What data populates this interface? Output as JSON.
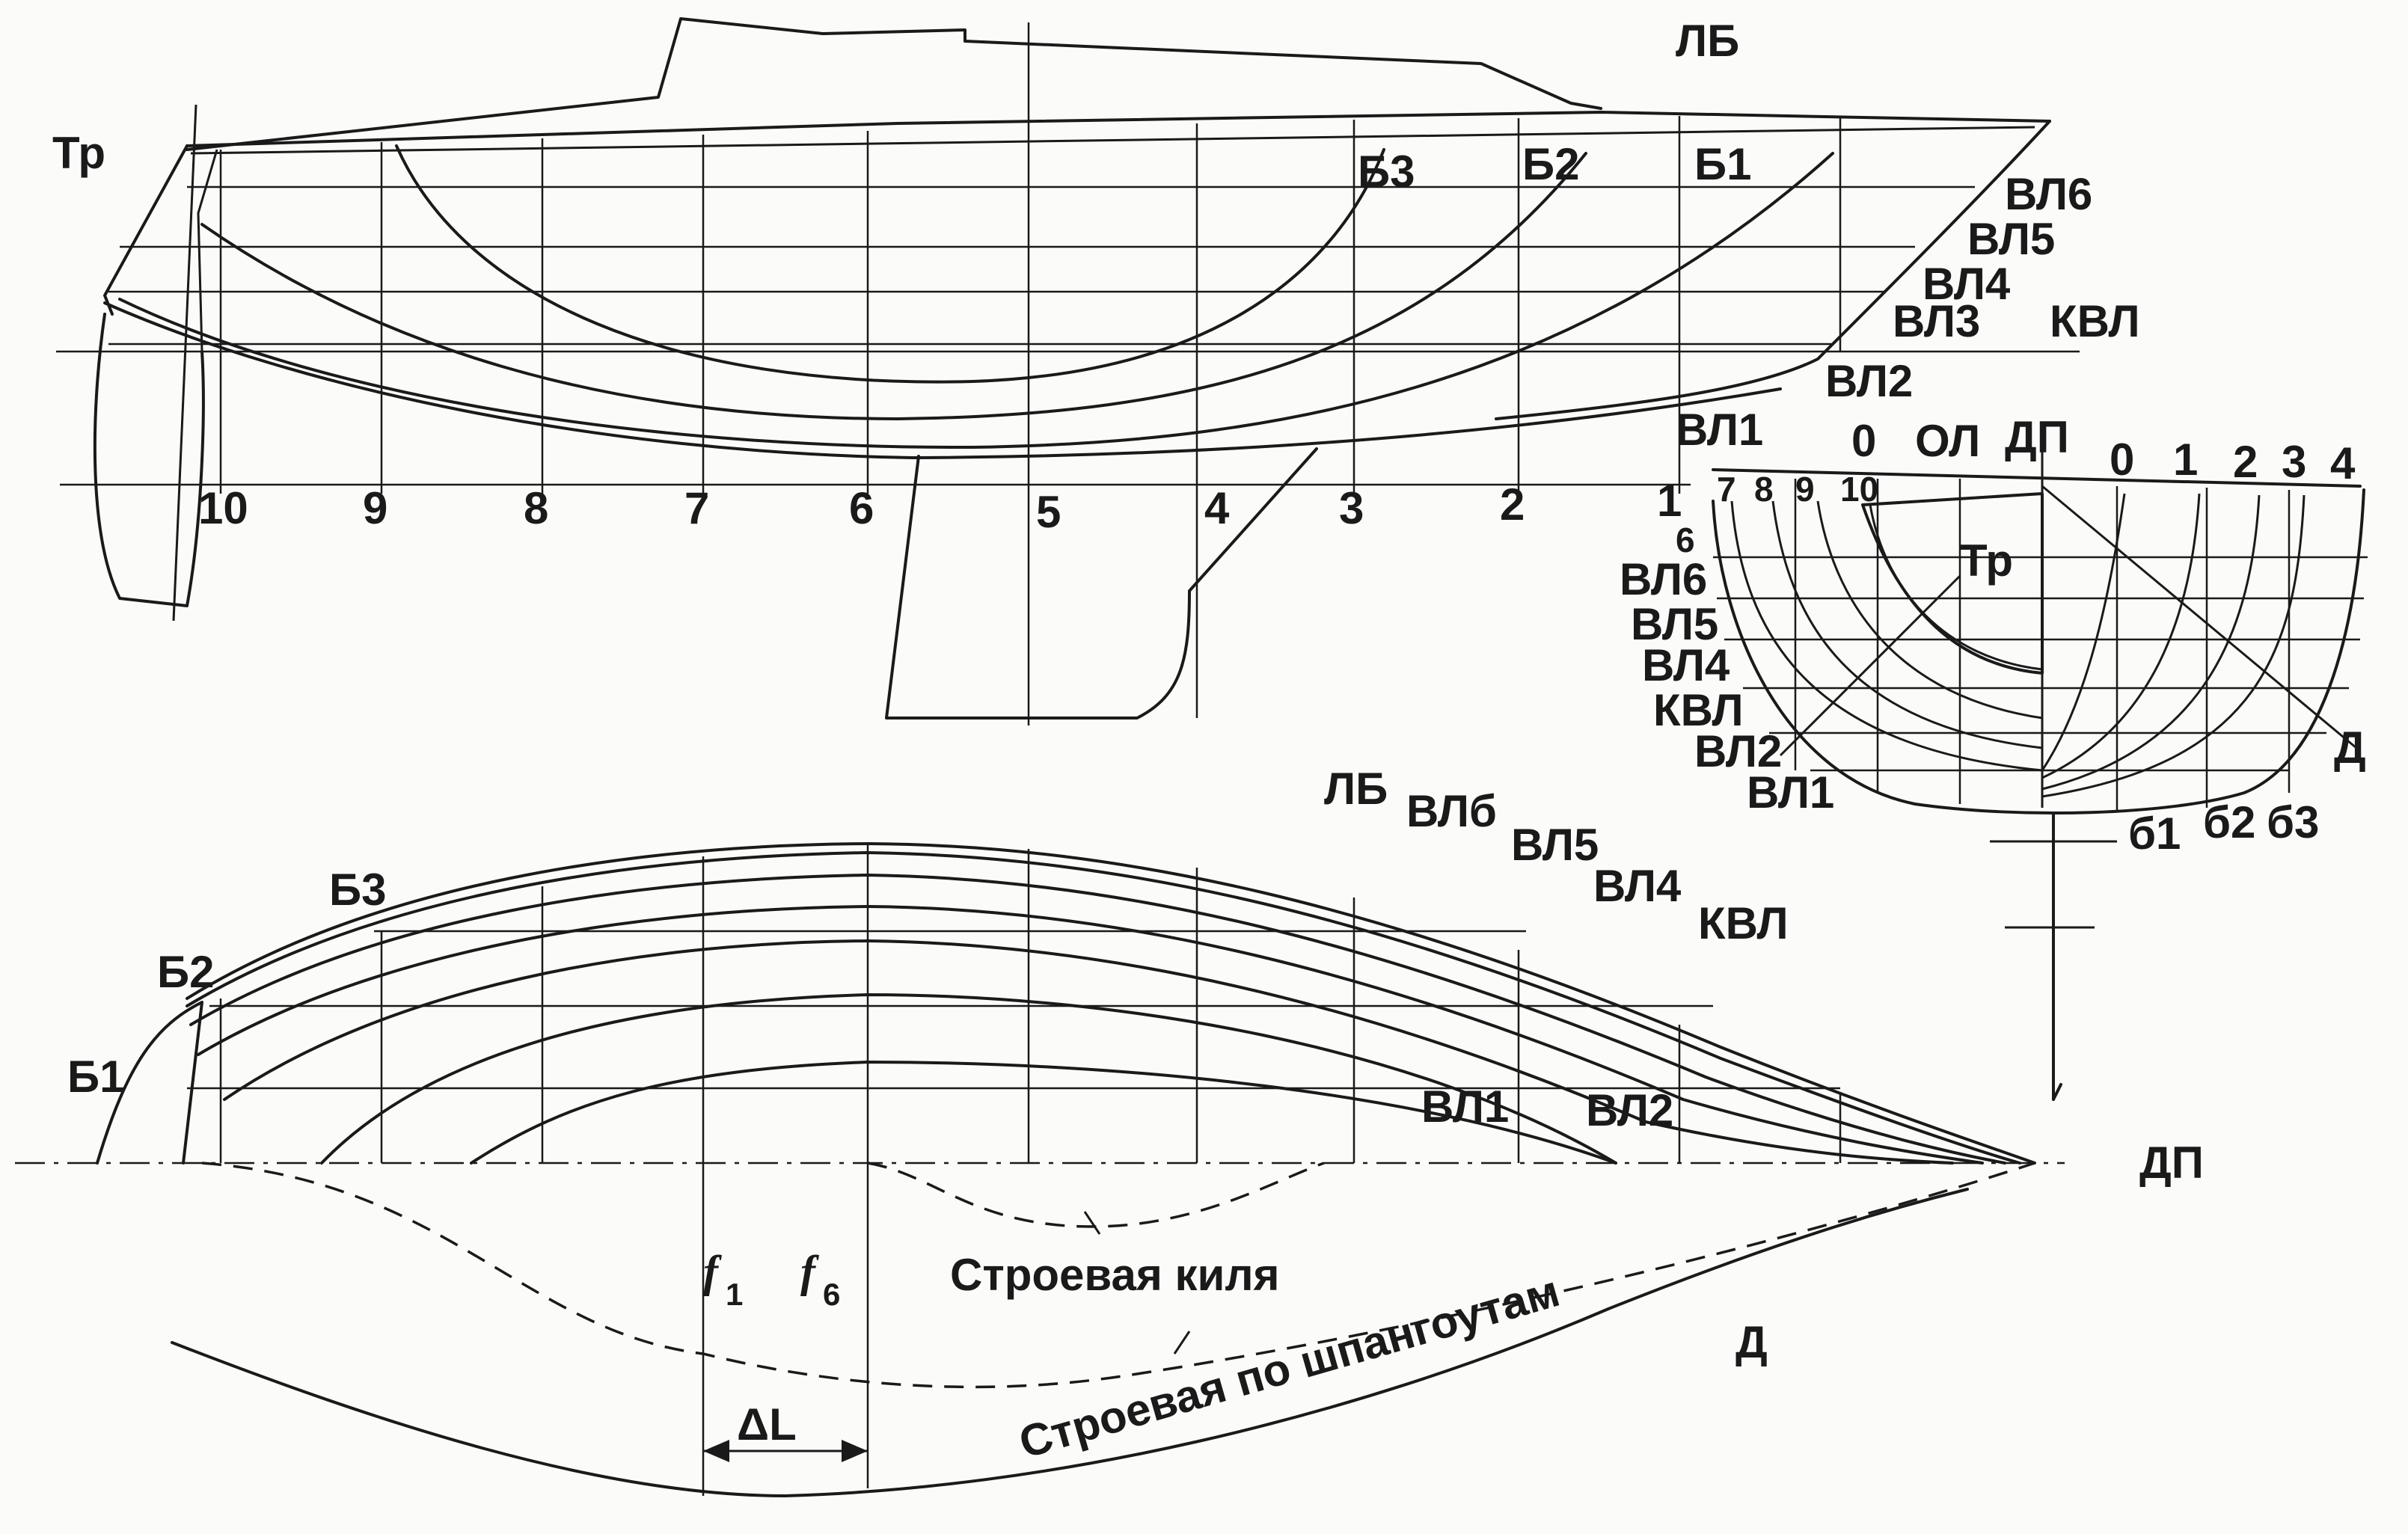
{
  "profile": {
    "transom_label": "Тр",
    "sheer_label": "ЛБ",
    "buttock_labels": [
      "Б3",
      "Б2",
      "Б1"
    ],
    "waterline_labels": [
      "ВЛ6",
      "ВЛ5",
      "ВЛ4",
      "ВЛ3",
      "ВЛ2",
      "ВЛ1"
    ],
    "dwl_label": "КВЛ",
    "station_labels": [
      "10",
      "9",
      "8",
      "7",
      "6",
      "5",
      "4",
      "3",
      "2",
      "1"
    ]
  },
  "body_plan": {
    "top_labels": [
      "0",
      "ОЛ",
      "ДП"
    ],
    "aft_station_labels": [
      "7",
      "8",
      "9",
      "10"
    ],
    "station6_label": "6",
    "fwd_station_labels": [
      "0",
      "1",
      "2",
      "3",
      "4"
    ],
    "waterline_labels": [
      "ВЛ6",
      "ВЛ5",
      "ВЛ4",
      "КВЛ",
      "ВЛ2",
      "ВЛ1"
    ],
    "transom_label": "Тр",
    "diagonal_label": "Д",
    "buttock_labels": [
      "б1",
      "б2",
      "б3"
    ]
  },
  "half_breadth": {
    "sheer_label": "ЛБ",
    "waterline_labels": [
      "ВЛб",
      "ВЛ5",
      "ВЛ4",
      "КВЛ",
      "ВЛ1",
      "ВЛ2"
    ],
    "buttock_labels": [
      "Б3",
      "Б2",
      "Б1"
    ],
    "centerline_label": "ДП",
    "keel_curve_label": "Строевая киля",
    "frames_curve_label": "Строевая по шпангоутам",
    "f1_main": "f",
    "f1_sub": "1",
    "f6_main": "f",
    "f6_sub": "6",
    "delta_label": "ΔL",
    "diagonal_label": "Д"
  }
}
